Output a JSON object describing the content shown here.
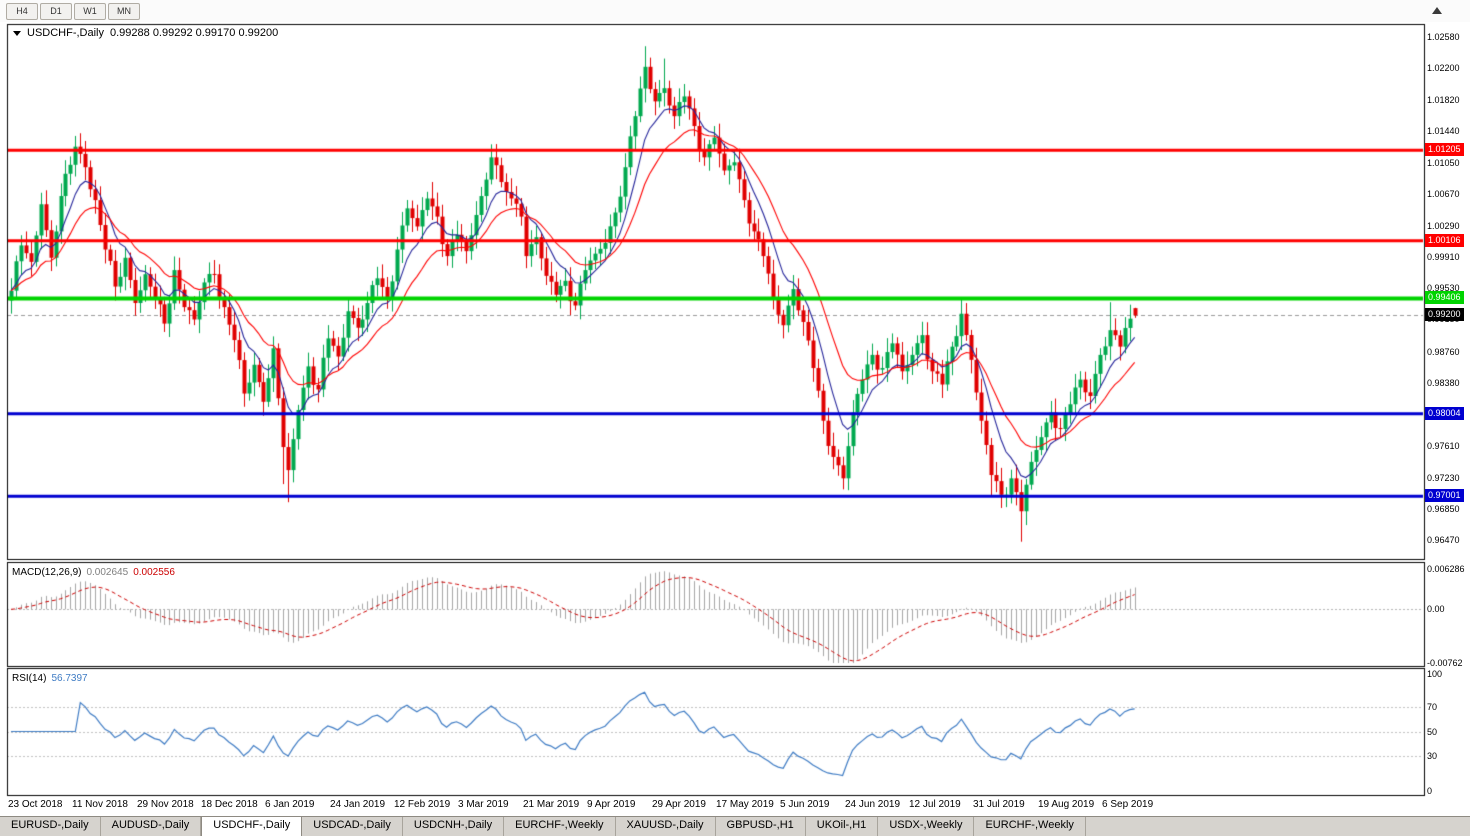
{
  "toolbar": {
    "timeframes": [
      {
        "label": "H4"
      },
      {
        "label": "D1"
      },
      {
        "label": "W1"
      },
      {
        "label": "MN"
      }
    ]
  },
  "main_chart": {
    "title": "USDCHF-,Daily",
    "ohlc": "0.99288 0.99292 0.99170 0.99200"
  },
  "macd": {
    "header_label": "MACD(12,26,9)",
    "value_main": "0.002645",
    "value_signal": "0.002556"
  },
  "rsi": {
    "header_label": "RSI(14)",
    "value": "56.7397"
  },
  "tabs": [
    {
      "label": "EURUSD-,Daily",
      "active": false
    },
    {
      "label": "AUDUSD-,Daily",
      "active": false
    },
    {
      "label": "USDCHF-,Daily",
      "active": true
    },
    {
      "label": "USDCAD-,Daily",
      "active": false
    },
    {
      "label": "USDCNH-,Daily",
      "active": false
    },
    {
      "label": "EURCHF-,Weekly",
      "active": false
    },
    {
      "label": "XAUUSD-,Daily",
      "active": false
    },
    {
      "label": "GBPUSD-,H1",
      "active": false
    },
    {
      "label": "UKOil-,H1",
      "active": false
    },
    {
      "label": "USDX-,Weekly",
      "active": false
    },
    {
      "label": "EURCHF-,Weekly",
      "active": false
    }
  ],
  "chart_data": {
    "type": "candlestick",
    "symbol": "USDCHF",
    "timeframe": "Daily",
    "bars": 228,
    "current_bar": {
      "open": 0.99288,
      "high": 0.99292,
      "low": 0.9917,
      "close": 0.992
    },
    "price_range": {
      "max": 1.0274,
      "min": 0.9624
    },
    "colors": {
      "up": "#00a94f",
      "down": "#e00000",
      "ma_fast": "#26269b",
      "ma_slow": "#ff0000",
      "macd_hist": "#a6a6a6",
      "macd_signal": "#cc0000",
      "rsi_line": "#3f7cc4",
      "level_dashed": "#c0c0c0",
      "current_price_line": "#9a9a9a"
    },
    "moving_averages": [
      {
        "period": 8,
        "color": "#26269b"
      },
      {
        "period": 17,
        "color": "#ff0000"
      }
    ],
    "close_path_anchors": [
      [
        0,
        0.995
      ],
      [
        2,
        1.0005
      ],
      [
        4,
        0.9985
      ],
      [
        6,
        1.0055
      ],
      [
        8,
        0.999
      ],
      [
        10,
        1.0065
      ],
      [
        13,
        1.0125
      ],
      [
        15,
        1.01
      ],
      [
        17,
        1.006
      ],
      [
        19,
        1.0
      ],
      [
        21,
        0.9955
      ],
      [
        23,
        0.999
      ],
      [
        25,
        0.9935
      ],
      [
        27,
        0.997
      ],
      [
        29,
        0.994
      ],
      [
        31,
        0.991
      ],
      [
        33,
        0.9975
      ],
      [
        35,
        0.993
      ],
      [
        37,
        0.9915
      ],
      [
        39,
        0.996
      ],
      [
        41,
        0.997
      ],
      [
        43,
        0.993
      ],
      [
        45,
        0.989
      ],
      [
        47,
        0.9825
      ],
      [
        49,
        0.986
      ],
      [
        51,
        0.9815
      ],
      [
        53,
        0.988
      ],
      [
        55,
        0.976
      ],
      [
        56,
        0.9732
      ],
      [
        58,
        0.9805
      ],
      [
        60,
        0.9858
      ],
      [
        62,
        0.983
      ],
      [
        64,
        0.9892
      ],
      [
        66,
        0.987
      ],
      [
        68,
        0.9925
      ],
      [
        70,
        0.9905
      ],
      [
        72,
        0.9935
      ],
      [
        74,
        0.9965
      ],
      [
        76,
        0.994
      ],
      [
        78,
        1.0
      ],
      [
        80,
        1.005
      ],
      [
        82,
        1.0028
      ],
      [
        84,
        1.0062
      ],
      [
        86,
        1.004
      ],
      [
        88,
        0.9992
      ],
      [
        90,
        1.0018
      ],
      [
        92,
        0.9998
      ],
      [
        94,
        1.0042
      ],
      [
        96,
        1.0085
      ],
      [
        97,
        1.0112
      ],
      [
        99,
        1.0082
      ],
      [
        101,
        1.0062
      ],
      [
        103,
        1.004
      ],
      [
        104,
        0.9992
      ],
      [
        106,
        1.0015
      ],
      [
        108,
        0.9968
      ],
      [
        110,
        0.9945
      ],
      [
        112,
        0.9962
      ],
      [
        114,
        0.9932
      ],
      [
        116,
        0.9975
      ],
      [
        118,
        0.9995
      ],
      [
        120,
        1.0008
      ],
      [
        122,
        1.0045
      ],
      [
        124,
        1.01
      ],
      [
        126,
        1.0162
      ],
      [
        128,
        1.0222
      ],
      [
        130,
        1.018
      ],
      [
        132,
        1.0196
      ],
      [
        134,
        1.0162
      ],
      [
        136,
        1.0186
      ],
      [
        138,
        1.015
      ],
      [
        140,
        1.0112
      ],
      [
        142,
        1.0136
      ],
      [
        144,
        1.0096
      ],
      [
        146,
        1.0106
      ],
      [
        148,
        1.006
      ],
      [
        150,
        1.0022
      ],
      [
        152,
        0.9992
      ],
      [
        154,
        0.9942
      ],
      [
        156,
        0.9908
      ],
      [
        158,
        0.9952
      ],
      [
        160,
        0.9912
      ],
      [
        162,
        0.9856
      ],
      [
        164,
        0.9792
      ],
      [
        166,
        0.9748
      ],
      [
        168,
        0.9722
      ],
      [
        170,
        0.9802
      ],
      [
        172,
        0.9842
      ],
      [
        174,
        0.9872
      ],
      [
        176,
        0.9856
      ],
      [
        178,
        0.9886
      ],
      [
        180,
        0.9852
      ],
      [
        182,
        0.9872
      ],
      [
        184,
        0.9896
      ],
      [
        186,
        0.9852
      ],
      [
        188,
        0.9836
      ],
      [
        190,
        0.9882
      ],
      [
        192,
        0.9922
      ],
      [
        194,
        0.9866
      ],
      [
        196,
        0.9792
      ],
      [
        198,
        0.9726
      ],
      [
        200,
        0.9702
      ],
      [
        202,
        0.9722
      ],
      [
        204,
        0.9682
      ],
      [
        206,
        0.9742
      ],
      [
        208,
        0.9772
      ],
      [
        210,
        0.9802
      ],
      [
        212,
        0.9782
      ],
      [
        214,
        0.9812
      ],
      [
        216,
        0.9842
      ],
      [
        218,
        0.9822
      ],
      [
        220,
        0.9872
      ],
      [
        222,
        0.9902
      ],
      [
        224,
        0.9882
      ],
      [
        226,
        0.9916
      ],
      [
        227,
        0.992
      ]
    ],
    "spike_highs": [
      [
        13,
        1.0138
      ],
      [
        85,
        1.0082
      ],
      [
        97,
        1.0122
      ],
      [
        128,
        1.0247
      ],
      [
        132,
        1.0232
      ],
      [
        222,
        0.9936
      ],
      [
        226,
        0.9932
      ]
    ],
    "spike_lows": [
      [
        55,
        0.9715
      ],
      [
        56,
        0.9693
      ],
      [
        168,
        0.9712
      ],
      [
        198,
        0.97
      ],
      [
        200,
        0.9686
      ],
      [
        204,
        0.9645
      ]
    ],
    "hlines": [
      {
        "label": "1.01205",
        "value": 1.01205,
        "color": "#ff0000",
        "width": 3
      },
      {
        "label": "1.00106",
        "value": 1.00106,
        "color": "#ff0000",
        "width": 3
      },
      {
        "label": "0.99406",
        "value": 0.99406,
        "color": "#00d400",
        "width": 4
      },
      {
        "label": "0.98004",
        "value": 0.98004,
        "color": "#0000d0",
        "width": 3
      },
      {
        "label": "0.97001",
        "value": 0.97001,
        "color": "#0000d0",
        "width": 3
      }
    ],
    "current_price": {
      "label": "0.99200",
      "value": 0.992,
      "color": "#000000"
    },
    "price_axis_labels": [
      "1.02580",
      "1.02200",
      "1.01820",
      "1.01440",
      "1.01050",
      "1.00670",
      "1.00290",
      "0.99910",
      "0.99530",
      "0.99150",
      "0.98760",
      "0.98380",
      "0.98000",
      "0.97610",
      "0.97230",
      "0.96850",
      "0.96470"
    ],
    "x_axis_labels": [
      {
        "index": 0,
        "label": "23 Oct 2018"
      },
      {
        "index": 13,
        "label": "11 Nov 2018"
      },
      {
        "index": 26,
        "label": "29 Nov 2018"
      },
      {
        "index": 39,
        "label": "18 Dec 2018"
      },
      {
        "index": 52,
        "label": "6 Jan 2019"
      },
      {
        "index": 65,
        "label": "24 Jan 2019"
      },
      {
        "index": 78,
        "label": "12 Feb 2019"
      },
      {
        "index": 91,
        "label": "3 Mar 2019"
      },
      {
        "index": 104,
        "label": "21 Mar 2019"
      },
      {
        "index": 117,
        "label": "9 Apr 2019"
      },
      {
        "index": 130,
        "label": "29 Apr 2019"
      },
      {
        "index": 143,
        "label": "17 May 2019"
      },
      {
        "index": 156,
        "label": "5 Jun 2019"
      },
      {
        "index": 169,
        "label": "24 Jun 2019"
      },
      {
        "index": 182,
        "label": "12 Jul 2019"
      },
      {
        "index": 195,
        "label": "31 Jul 2019"
      },
      {
        "index": 208,
        "label": "19 Aug 2019"
      },
      {
        "index": 221,
        "label": "6 Sep 2019"
      }
    ],
    "macd": {
      "fast": 12,
      "slow": 26,
      "signal": 9,
      "range": {
        "max": 0.006286,
        "min": -0.00762
      },
      "axis_labels": [
        {
          "text": "0.006286",
          "value": 0.006286
        },
        {
          "text": "0.00",
          "value": 0
        },
        {
          "text": "-0.00762",
          "value": -0.00762
        }
      ]
    },
    "rsi": {
      "period": 14,
      "range": {
        "max": 100,
        "min": 0
      },
      "levels": [
        70,
        50,
        30
      ],
      "axis_labels": [
        {
          "text": "100",
          "value": 100
        },
        {
          "text": "70",
          "value": 70
        },
        {
          "text": "50",
          "value": 50
        },
        {
          "text": "30",
          "value": 30
        },
        {
          "text": "0",
          "value": 0
        }
      ]
    }
  }
}
